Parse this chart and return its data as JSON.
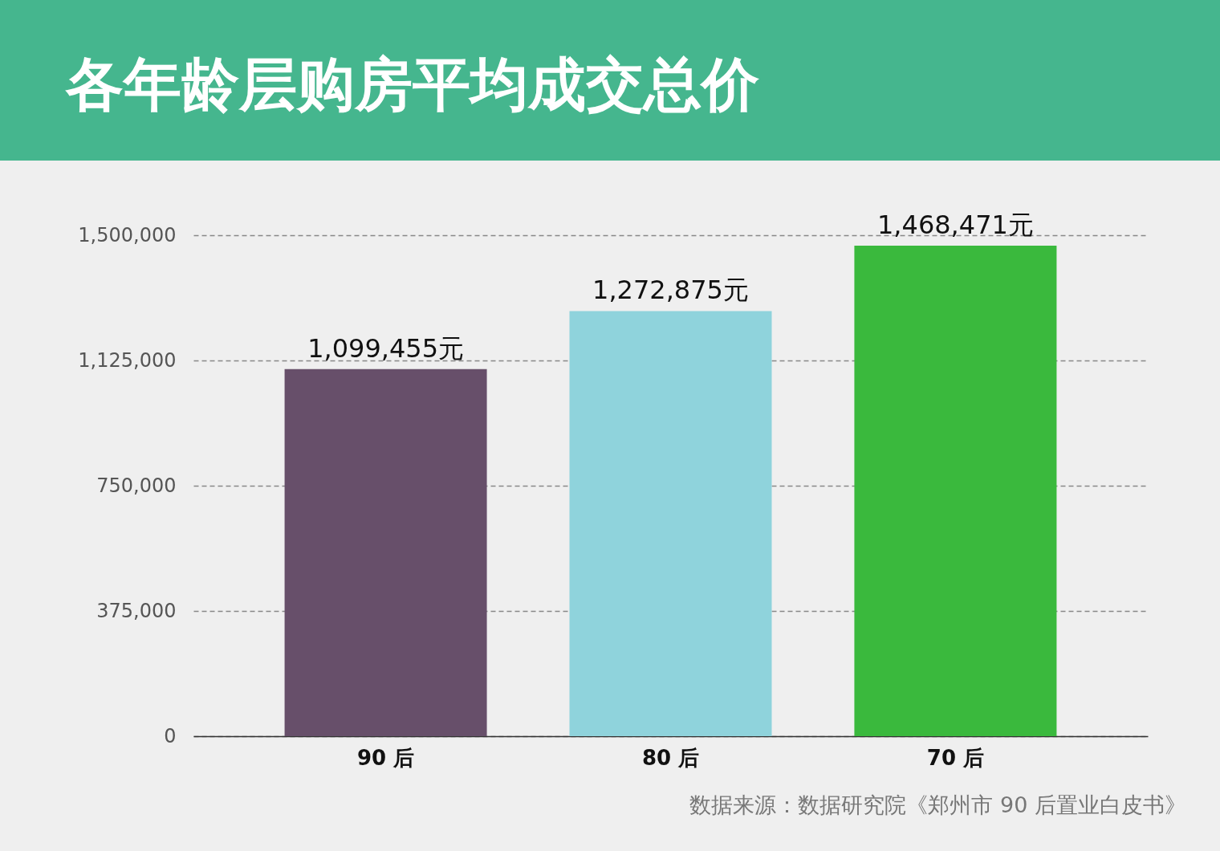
{
  "chart_data": {
    "type": "bar",
    "title": "各年龄层购房平均成交总价",
    "categories": [
      "90 后",
      "80 后",
      "70 后"
    ],
    "values": [
      1099455,
      1272875,
      1468471
    ],
    "colors": [
      "#674f6a",
      "#8fd3dc",
      "#3ab93d"
    ],
    "value_labels": [
      "1,099,455元",
      "1,272,875元",
      "1,468,471元"
    ],
    "ylim": [
      0,
      1500000
    ],
    "yticks": [
      0,
      {
        "value": 375000,
        "label": "375,000"
      },
      {
        "value": 750000,
        "label": "750,000"
      },
      {
        "value": 1125000,
        "label": "1,125,000"
      },
      {
        "value": 1500000,
        "label": "1,500,000"
      }
    ],
    "grid": "y",
    "annotations": [
      "数据来源：数据研究院《郑州市 90 后置业白皮书》"
    ]
  }
}
